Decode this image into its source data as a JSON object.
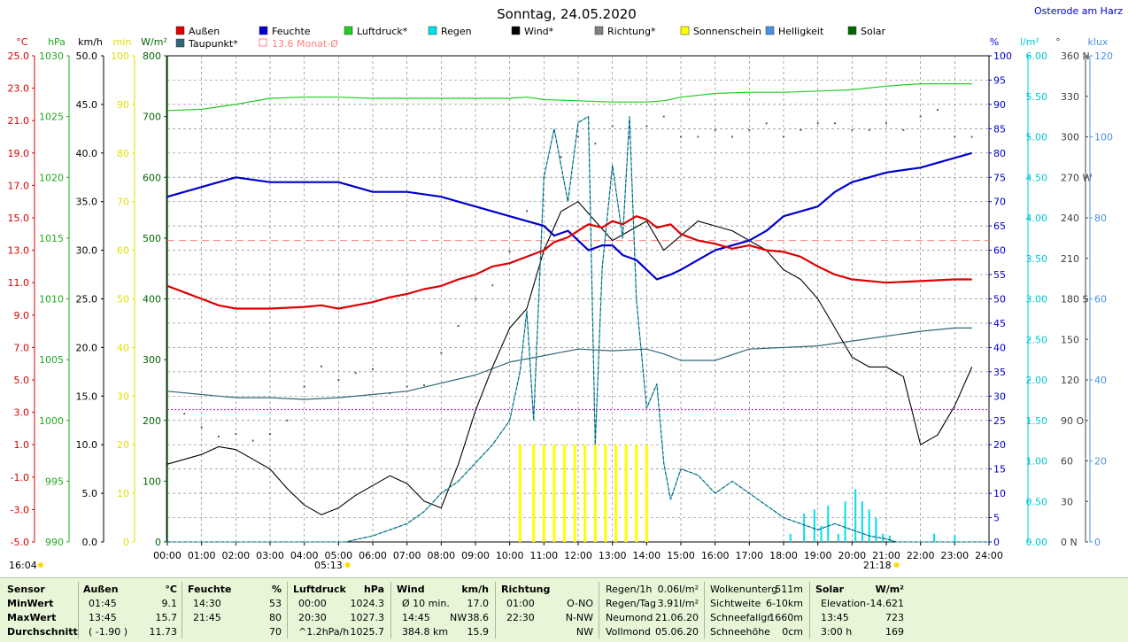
{
  "chart_data": {
    "type": "line",
    "title": "Sonntag, 24.05.2020",
    "location": "Osterode am Harz",
    "legend": [
      {
        "name": "Außen",
        "color": "#dd0000"
      },
      {
        "name": "Feuchte",
        "color": "#0000cc"
      },
      {
        "name": "Luftdruck*",
        "color": "#22cc22"
      },
      {
        "name": "Regen",
        "color": "#00e0e8"
      },
      {
        "name": "Wind*",
        "color": "#000000"
      },
      {
        "name": "Richtung*",
        "color": "#808080"
      },
      {
        "name": "Sonnenschein",
        "color": "#ffff00"
      },
      {
        "name": "Helligkeit",
        "color": "#4a90e2"
      },
      {
        "name": "Solar",
        "color": "#006600"
      },
      {
        "name": "Taupunkt*",
        "color": "#336677"
      },
      {
        "name": "13.6 Monat-Ø",
        "color": "#ff8080"
      }
    ],
    "left_axes": [
      {
        "unit": "°C",
        "color": "#dd0000",
        "ticks": [
          "25.0",
          "23.0",
          "21.0",
          "19.0",
          "17.0",
          "15.0",
          "13.0",
          "11.0",
          "9.0",
          "7.0",
          "5.0",
          "3.0",
          "1.0",
          "-1.0",
          "-3.0",
          "-5.0"
        ]
      },
      {
        "unit": "hPa",
        "color": "#22aa22",
        "ticks": [
          "1030",
          "1025",
          "1020",
          "1015",
          "1010",
          "1005",
          "1000",
          "995",
          "990"
        ]
      },
      {
        "unit": "km/h",
        "color": "#000000",
        "ticks": [
          "50.0",
          "45.0",
          "40.0",
          "35.0",
          "30.0",
          "25.0",
          "20.0",
          "15.0",
          "10.0",
          "5.0",
          "0.0"
        ]
      },
      {
        "unit": "min",
        "color": "#e0e000",
        "ticks": [
          "100",
          "90",
          "80",
          "70",
          "60",
          "50",
          "40",
          "30",
          "20",
          "10",
          "0"
        ]
      },
      {
        "unit": "W/m²",
        "color": "#006600",
        "ticks": [
          "800",
          "700",
          "600",
          "500",
          "400",
          "300",
          "200",
          "100",
          "0"
        ]
      }
    ],
    "right_axes": [
      {
        "unit": "%",
        "color": "#0000cc",
        "ticks": [
          "100",
          "95",
          "90",
          "85",
          "80",
          "75",
          "70",
          "65",
          "60",
          "55",
          "50",
          "45",
          "40",
          "35",
          "30",
          "25",
          "20",
          "15",
          "10",
          "5",
          "0"
        ]
      },
      {
        "unit": "l/m²",
        "color": "#00c8d8",
        "ticks": [
          "6.00",
          "5.50",
          "5.00",
          "4.50",
          "4.00",
          "3.50",
          "3.00",
          "2.50",
          "2.00",
          "1.50",
          "1.00",
          "0.50",
          "0.00"
        ]
      },
      {
        "unit": "°",
        "color": "#404040",
        "ticks": [
          "360 N",
          "330",
          "300",
          "270 W",
          "240",
          "210",
          "180 S",
          "150",
          "120",
          "90 O",
          "60",
          "30",
          "0 N"
        ]
      },
      {
        "unit": "klux",
        "color": "#4a90e2",
        "ticks": [
          "120",
          "100",
          "80",
          "60",
          "40",
          "20",
          "0"
        ]
      }
    ],
    "x_ticks": [
      "00:00",
      "01:00",
      "02:00",
      "03:00",
      "04:00",
      "05:00",
      "06:00",
      "07:00",
      "08:00",
      "09:00",
      "10:00",
      "11:00",
      "12:00",
      "13:00",
      "14:00",
      "15:00",
      "16:00",
      "17:00",
      "18:00",
      "19:00",
      "20:00",
      "21:00",
      "22:00",
      "23:00",
      "24:00"
    ],
    "sunrise": "05:13",
    "sunset": "21:18",
    "time_now": "16:04",
    "month_avg_temp": 13.6,
    "wind_ref_kmh": 13.6,
    "series": {
      "temperature": {
        "x": [
          0,
          0.5,
          1,
          1.5,
          2,
          3,
          4,
          4.5,
          5,
          5.5,
          6,
          6.5,
          7,
          7.5,
          8,
          8.5,
          9,
          9.5,
          10,
          10.5,
          11,
          11.3,
          11.7,
          12,
          12.3,
          12.7,
          13,
          13.3,
          13.7,
          14,
          14.3,
          14.7,
          15,
          15.5,
          16,
          16.5,
          17,
          17.5,
          18,
          18.5,
          19,
          19.5,
          20,
          21,
          22,
          23,
          23.5
        ],
        "y": [
          10.8,
          10.4,
          10.0,
          9.6,
          9.4,
          9.4,
          9.5,
          9.6,
          9.4,
          9.6,
          9.8,
          10.1,
          10.3,
          10.6,
          10.8,
          11.2,
          11.5,
          12.0,
          12.2,
          12.6,
          13.0,
          13.5,
          13.8,
          14.2,
          14.6,
          14.4,
          14.8,
          14.6,
          15.1,
          14.9,
          14.4,
          14.6,
          14.0,
          13.6,
          13.4,
          13.1,
          13.3,
          13.0,
          12.9,
          12.6,
          12.0,
          11.5,
          11.2,
          11.0,
          11.1,
          11.2,
          11.2
        ]
      },
      "dewpoint": {
        "x": [
          0,
          1,
          2,
          3,
          4,
          5,
          6,
          7,
          8,
          9,
          10,
          11,
          12,
          13,
          14,
          14.5,
          15,
          16,
          17,
          18,
          19,
          20,
          21,
          22,
          23,
          23.5
        ],
        "y": [
          4.3,
          4.1,
          3.9,
          3.9,
          3.8,
          3.9,
          4.1,
          4.3,
          4.8,
          5.3,
          6.1,
          6.5,
          6.9,
          6.8,
          6.9,
          6.6,
          6.2,
          6.2,
          6.9,
          7.0,
          7.1,
          7.4,
          7.7,
          8.0,
          8.2,
          8.2
        ]
      },
      "humidity": {
        "x": [
          0,
          0.5,
          1,
          1.5,
          2,
          3,
          4,
          5,
          5.5,
          6,
          7,
          8,
          9,
          10,
          11,
          11.3,
          11.7,
          12,
          12.3,
          12.7,
          13,
          13.3,
          13.7,
          14,
          14.3,
          14.7,
          15,
          15.5,
          16,
          16.5,
          17,
          17.5,
          18,
          18.5,
          19,
          19.5,
          20,
          21,
          22,
          23,
          23.5
        ],
        "y": [
          71,
          72,
          73,
          74,
          75,
          74,
          74,
          74,
          73,
          72,
          72,
          71,
          69,
          67,
          65,
          63,
          64,
          62,
          60,
          61,
          61,
          59,
          58,
          56,
          54,
          55,
          56,
          58,
          60,
          61,
          62,
          64,
          67,
          68,
          69,
          72,
          74,
          76,
          77,
          79,
          80
        ]
      },
      "pressure": {
        "x": [
          0,
          1,
          2,
          3,
          4,
          5,
          6,
          7,
          8,
          9,
          10,
          10.5,
          11,
          12,
          13,
          14,
          14.5,
          15,
          16,
          17,
          18,
          19,
          20,
          21,
          21.5,
          22,
          23,
          23.5
        ],
        "y": [
          1025.5,
          1025.6,
          1026.0,
          1026.5,
          1026.6,
          1026.6,
          1026.5,
          1026.5,
          1026.5,
          1026.5,
          1026.5,
          1026.6,
          1026.4,
          1026.3,
          1026.2,
          1026.2,
          1026.3,
          1026.6,
          1026.9,
          1027.0,
          1027.0,
          1027.1,
          1027.2,
          1027.5,
          1027.6,
          1027.7,
          1027.7,
          1027.7
        ]
      },
      "wind": {
        "x": [
          0,
          0.5,
          1,
          1.5,
          2,
          2.5,
          3,
          3.5,
          4,
          4.5,
          5,
          5.5,
          6,
          6.5,
          7,
          7.5,
          8,
          8.5,
          9,
          9.5,
          10,
          10.5,
          11,
          11.5,
          12,
          12.5,
          13,
          13.5,
          14,
          14.5,
          15,
          15.5,
          16,
          16.5,
          17,
          17.5,
          18,
          18.5,
          19,
          19.5,
          20,
          20.5,
          21,
          21.5,
          22,
          22.5,
          23,
          23.5
        ],
        "y": [
          8.0,
          8.5,
          9.0,
          9.8,
          9.5,
          8.5,
          7.5,
          5.5,
          3.8,
          2.8,
          3.5,
          4.8,
          5.8,
          6.8,
          6.0,
          4.2,
          3.5,
          8.0,
          13.5,
          18.0,
          22.0,
          24.0,
          30.0,
          34.0,
          35.0,
          33.0,
          31.0,
          32.0,
          33.0,
          30.0,
          31.5,
          33.0,
          32.5,
          32.0,
          31.0,
          30.0,
          28.0,
          27.0,
          25.0,
          22.0,
          19.0,
          18.0,
          18.0,
          17.0,
          10.0,
          11.0,
          14.0,
          18.0
        ]
      },
      "solar": {
        "x": [
          0,
          5.2,
          6,
          6.5,
          7,
          7.5,
          8,
          8.5,
          9,
          9.5,
          10,
          10.3,
          10.5,
          10.7,
          11,
          11.3,
          11.7,
          12,
          12.3,
          12.5,
          12.7,
          13,
          13.3,
          13.5,
          13.7,
          14,
          14.3,
          14.5,
          14.7,
          15,
          15.5,
          16,
          16.5,
          17,
          17.5,
          18,
          18.5,
          19,
          19.5,
          20,
          20.5,
          21,
          21.3,
          24
        ],
        "y": [
          0,
          0,
          10,
          20,
          30,
          50,
          80,
          100,
          130,
          160,
          200,
          280,
          380,
          200,
          600,
          680,
          560,
          690,
          700,
          160,
          450,
          620,
          500,
          700,
          400,
          220,
          260,
          130,
          70,
          120,
          110,
          80,
          100,
          80,
          60,
          40,
          30,
          20,
          30,
          20,
          10,
          5,
          0,
          0
        ]
      },
      "sunshine_minutes": {
        "x": [
          10.3,
          10.7,
          11,
          11.3,
          11.6,
          11.9,
          12.2,
          12.5,
          12.8,
          13.1,
          13.4,
          13.7,
          14.0
        ],
        "y": [
          20,
          20,
          20,
          20,
          20,
          20,
          20,
          20,
          20,
          20,
          20,
          20,
          20
        ]
      },
      "rain": {
        "x": [
          18.2,
          18.6,
          18.9,
          19.1,
          19.3,
          19.6,
          19.8,
          20.1,
          20.3,
          20.5,
          20.7,
          20.9,
          21.1,
          22.4,
          23.0
        ],
        "y": [
          0.1,
          0.35,
          0.4,
          0.2,
          0.45,
          0.1,
          0.5,
          0.65,
          0.5,
          0.4,
          0.3,
          0.1,
          0.08,
          0.1,
          0.08
        ]
      },
      "direction_points": {
        "x": [
          0.5,
          1,
          1.5,
          2,
          2.5,
          3,
          3.5,
          4,
          4.5,
          5,
          5.5,
          6,
          6.5,
          7,
          7.5,
          8,
          8.5,
          9,
          9.5,
          10,
          10.5,
          11,
          11.5,
          12,
          12.5,
          13,
          13.5,
          14,
          14.5,
          15,
          15.5,
          16,
          16.5,
          17,
          17.5,
          18,
          18.5,
          19,
          19.5,
          20,
          20.5,
          21,
          21.5,
          22,
          22.5,
          23,
          23.5
        ],
        "y": [
          95,
          85,
          78,
          80,
          75,
          80,
          90,
          115,
          130,
          120,
          125,
          128,
          110,
          115,
          116,
          140,
          160,
          180,
          190,
          215,
          245,
          270,
          285,
          300,
          295,
          308,
          300,
          308,
          315,
          300,
          300,
          305,
          300,
          305,
          310,
          300,
          305,
          310,
          310,
          305,
          305,
          310,
          305,
          315,
          320,
          300,
          300
        ]
      }
    }
  },
  "summary": {
    "sensor": {
      "header": "Sensor",
      "rows": [
        "MinWert",
        "MaxWert",
        "Durchschnitt"
      ]
    },
    "aussen": {
      "header": "Außen",
      "unit": "°C",
      "times": [
        "01:45",
        "13:45",
        "( -1.90 )"
      ],
      "values": [
        "9.1",
        "15.7",
        "11.73"
      ]
    },
    "feuchte": {
      "header": "Feuchte",
      "unit": "%",
      "times": [
        "14:30",
        "21:45",
        ""
      ],
      "values": [
        "53",
        "80",
        "70"
      ]
    },
    "luftdruck": {
      "header": "Luftdruck",
      "unit": "hPa",
      "times": [
        "00:00",
        "20:30",
        "^1.2hPa/h"
      ],
      "values": [
        "1024.3",
        "1027.3",
        "1025.7"
      ]
    },
    "wind": {
      "header": "Wind",
      "unit": "km/h",
      "times": [
        "Ø 10 min.",
        "14:45",
        "384.8 km"
      ],
      "mid": [
        "",
        "NW",
        ""
      ],
      "values": [
        "17.0",
        "38.6",
        "15.9"
      ]
    },
    "richtung": {
      "header": "Richtung",
      "times": [
        "01:00",
        "22:30",
        ""
      ],
      "values": [
        "O-NO",
        "N-NW",
        "NW"
      ]
    },
    "regen": {
      "labels": [
        "Regen/1h",
        "Regen/Tag",
        "Neumond",
        "Vollmond"
      ],
      "values": [
        "0.06l/m²",
        "3.91l/m²",
        "21.06.20",
        "05.06.20"
      ]
    },
    "wolken": {
      "labels": [
        "Wolkenunterg",
        "Sichtweite",
        "Schneefallgr",
        "Schneehöhe"
      ],
      "values": [
        "511m",
        "6-10km",
        "1660m",
        "0cm"
      ]
    },
    "solar": {
      "header": "Solar",
      "unit": "W/m²",
      "labels": [
        "Elevation",
        "13:45",
        "3:00 h"
      ],
      "values": [
        "-14.621",
        "723",
        "169"
      ]
    }
  }
}
